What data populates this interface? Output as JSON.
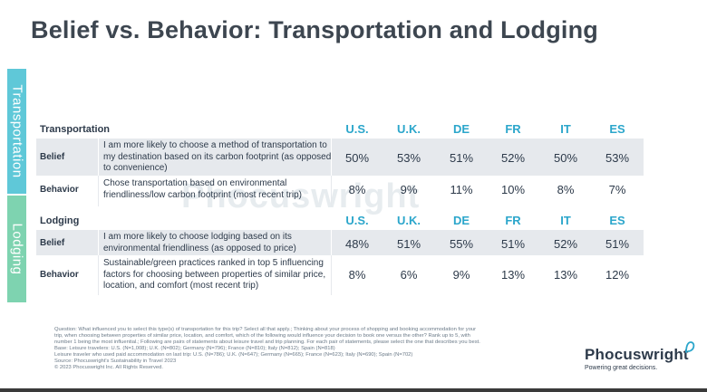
{
  "title": "Belief vs. Behavior: Transportation and Lodging",
  "side_tabs": {
    "transportation": "Transportation",
    "lodging": "Lodging"
  },
  "watermark": "Phocuswright",
  "columns": [
    "U.S.",
    "U.K.",
    "DE",
    "FR",
    "IT",
    "ES"
  ],
  "sections": [
    {
      "name": "Transportation",
      "rows": [
        {
          "label": "Belief",
          "text": "I am more likely to choose a method of transportation to my destination based on its carbon footprint (as opposed to convenience)",
          "values": [
            "50%",
            "53%",
            "51%",
            "52%",
            "50%",
            "53%"
          ]
        },
        {
          "label": "Behavior",
          "text": "Chose transportation based on environmental friendliness/low carbon footprint (most recent trip)",
          "values": [
            "8%",
            "9%",
            "11%",
            "10%",
            "8%",
            "7%"
          ]
        }
      ]
    },
    {
      "name": "Lodging",
      "rows": [
        {
          "label": "Belief",
          "text": "I am more likely to choose lodging based on its environmental friendliness (as opposed to price)",
          "values": [
            "48%",
            "51%",
            "55%",
            "51%",
            "52%",
            "51%"
          ]
        },
        {
          "label": "Behavior",
          "text": "Sustainable/green practices ranked in top 5 influencing factors for choosing between properties of similar price, location, and comfort (most recent trip)",
          "values": [
            "8%",
            "6%",
            "9%",
            "13%",
            "13%",
            "12%"
          ]
        }
      ]
    }
  ],
  "footnote": [
    "Question: What influenced you to select this type(s) of transportation for this trip? Select all that apply.; Thinking about your process of shopping and booking accommodation for your",
    "trip, when choosing between properties of similar price, location, and comfort, which of the following would influence your decision to book one versus the other? Rank up to 5, with",
    "number 1 being the most influential.; Following are pairs of statements about leisure travel and trip planning. For each pair of statements, please select the one that describes you best.",
    "Base: Leisure travelers: U.S. (N=1,008); U.K. (N=802); Germany (N=796); France (N=810); Italy (N=812); Spain (N=818)",
    "Leisure traveler who used paid accommodation on last trip: U.S. (N=786); U.K. (N=647); Germany (N=665); France (N=623); Italy (N=690); Spain (N=702)",
    "Source: Phocuswright's Sustainability in Travel 2023",
    "© 2023 Phocuswright Inc. All Rights Reserved."
  ],
  "logo": {
    "name": "Phocuswright",
    "tagline": "Powering great decisions."
  },
  "colors": {
    "accent": "#2ba6cb",
    "transport_tab": "#5fc8d8",
    "lodging_tab": "#7ed3b0",
    "row_shade": "#e6e9ed"
  }
}
